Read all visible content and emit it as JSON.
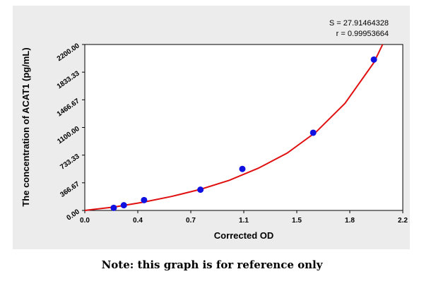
{
  "stats": {
    "s_label": "S = 27.91464328",
    "r_label": "r = 0.99953664"
  },
  "note": "Note: this graph is for reference only",
  "chart_data": {
    "type": "scatter",
    "title": "",
    "xlabel": "Corrected OD",
    "ylabel": "The concentration of ACAT1 (pg/mL)",
    "xlim": [
      0.0,
      2.2
    ],
    "ylim": [
      0.0,
      2200.0
    ],
    "x_ticks": [
      "0.0",
      "0.4",
      "0.7",
      "1.1",
      "1.5",
      "1.8",
      "2.2"
    ],
    "y_ticks": [
      "0.00",
      "366.67",
      "733.33",
      "1100.00",
      "1466.67",
      "1833.33",
      "2200.00"
    ],
    "grid": false,
    "series": [
      {
        "type": "scatter",
        "color": "#1010e0",
        "points": [
          {
            "x": 0.2,
            "y": 34
          },
          {
            "x": 0.27,
            "y": 69
          },
          {
            "x": 0.41,
            "y": 137
          },
          {
            "x": 0.8,
            "y": 275
          },
          {
            "x": 1.09,
            "y": 550
          },
          {
            "x": 1.58,
            "y": 1030
          },
          {
            "x": 2.0,
            "y": 2000
          }
        ]
      },
      {
        "type": "line",
        "color": "#e01010",
        "curve": [
          {
            "x": 0.0,
            "y": 0
          },
          {
            "x": 0.2,
            "y": 45
          },
          {
            "x": 0.4,
            "y": 108
          },
          {
            "x": 0.6,
            "y": 185
          },
          {
            "x": 0.8,
            "y": 280
          },
          {
            "x": 1.0,
            "y": 400
          },
          {
            "x": 1.2,
            "y": 560
          },
          {
            "x": 1.4,
            "y": 760
          },
          {
            "x": 1.6,
            "y": 1040
          },
          {
            "x": 1.8,
            "y": 1420
          },
          {
            "x": 2.0,
            "y": 1960
          },
          {
            "x": 2.06,
            "y": 2200
          }
        ]
      }
    ]
  }
}
